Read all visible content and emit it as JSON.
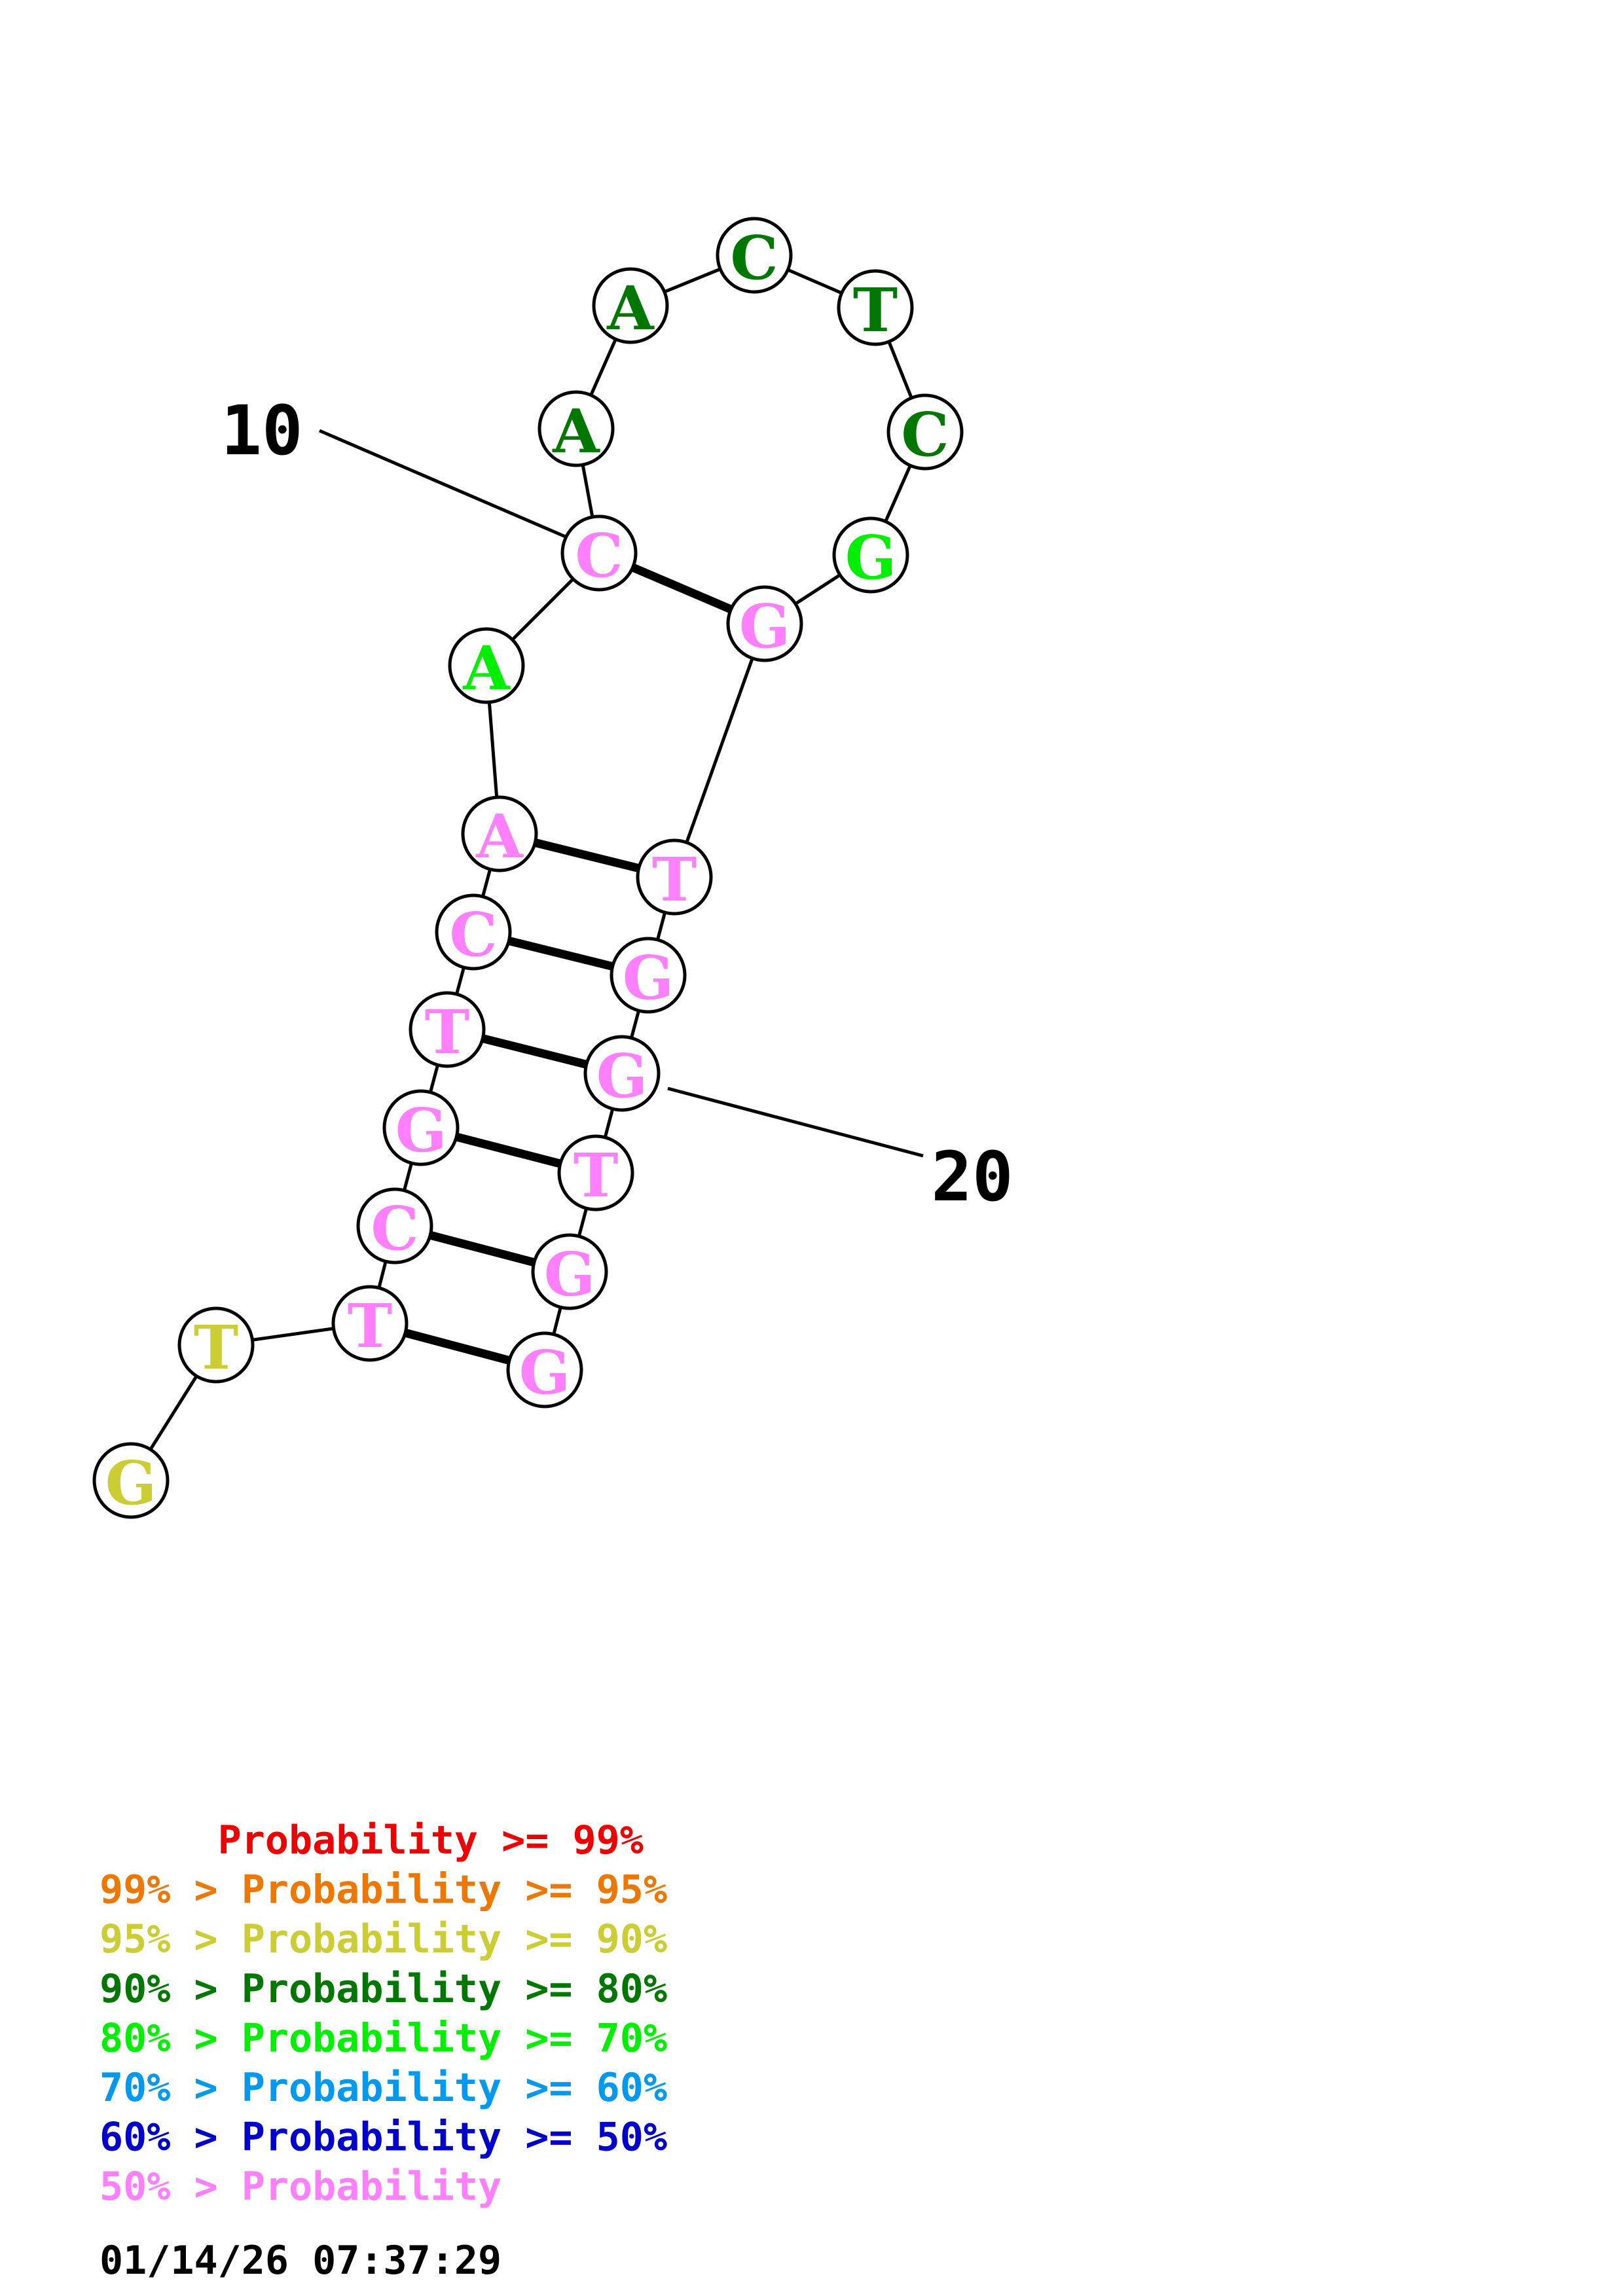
{
  "structure": {
    "nucleotides": [
      {
        "base": "G",
        "color": "#cccc33"
      },
      {
        "base": "T",
        "color": "#cccc33"
      },
      {
        "base": "T",
        "color": "#ff80ff"
      },
      {
        "base": "C",
        "color": "#ff80ff"
      },
      {
        "base": "G",
        "color": "#ff80ff"
      },
      {
        "base": "T",
        "color": "#ff80ff"
      },
      {
        "base": "C",
        "color": "#ff80ff"
      },
      {
        "base": "A",
        "color": "#ff80ff"
      },
      {
        "base": "A",
        "color": "#00ee00"
      },
      {
        "base": "C",
        "color": "#ff80ff"
      },
      {
        "base": "A",
        "color": "#007700"
      },
      {
        "base": "A",
        "color": "#007700"
      },
      {
        "base": "C",
        "color": "#007700"
      },
      {
        "base": "T",
        "color": "#007700"
      },
      {
        "base": "C",
        "color": "#007700"
      },
      {
        "base": "G",
        "color": "#00ee00"
      },
      {
        "base": "G",
        "color": "#ff80ff"
      },
      {
        "base": "T",
        "color": "#ff80ff"
      },
      {
        "base": "G",
        "color": "#ff80ff"
      },
      {
        "base": "G",
        "color": "#ff80ff"
      },
      {
        "base": "T",
        "color": "#ff80ff"
      },
      {
        "base": "G",
        "color": "#ff80ff"
      },
      {
        "base": "G",
        "color": "#ff80ff"
      }
    ],
    "pairs": [
      [
        3,
        23
      ],
      [
        4,
        22
      ],
      [
        5,
        21
      ],
      [
        6,
        20
      ],
      [
        7,
        19
      ],
      [
        8,
        18
      ],
      [
        10,
        17
      ]
    ],
    "position_labels": [
      {
        "position": 10,
        "text": "10"
      },
      {
        "position": 20,
        "text": "20"
      }
    ]
  },
  "legend": {
    "entries": [
      {
        "text": "     Probability >= 99%",
        "color": "#ee0000"
      },
      {
        "text": "99% > Probability >= 95%",
        "color": "#ee7700"
      },
      {
        "text": "95% > Probability >= 90%",
        "color": "#cccc33"
      },
      {
        "text": "90% > Probability >= 80%",
        "color": "#007700"
      },
      {
        "text": "80% > Probability >= 70%",
        "color": "#00ee00"
      },
      {
        "text": "70% > Probability >= 60%",
        "color": "#0099ee"
      },
      {
        "text": "60% > Probability >= 50%",
        "color": "#0000cc"
      },
      {
        "text": "50% > Probability",
        "color": "#ff80ff"
      }
    ],
    "timestamp": "01/14/26 07:37:29"
  }
}
